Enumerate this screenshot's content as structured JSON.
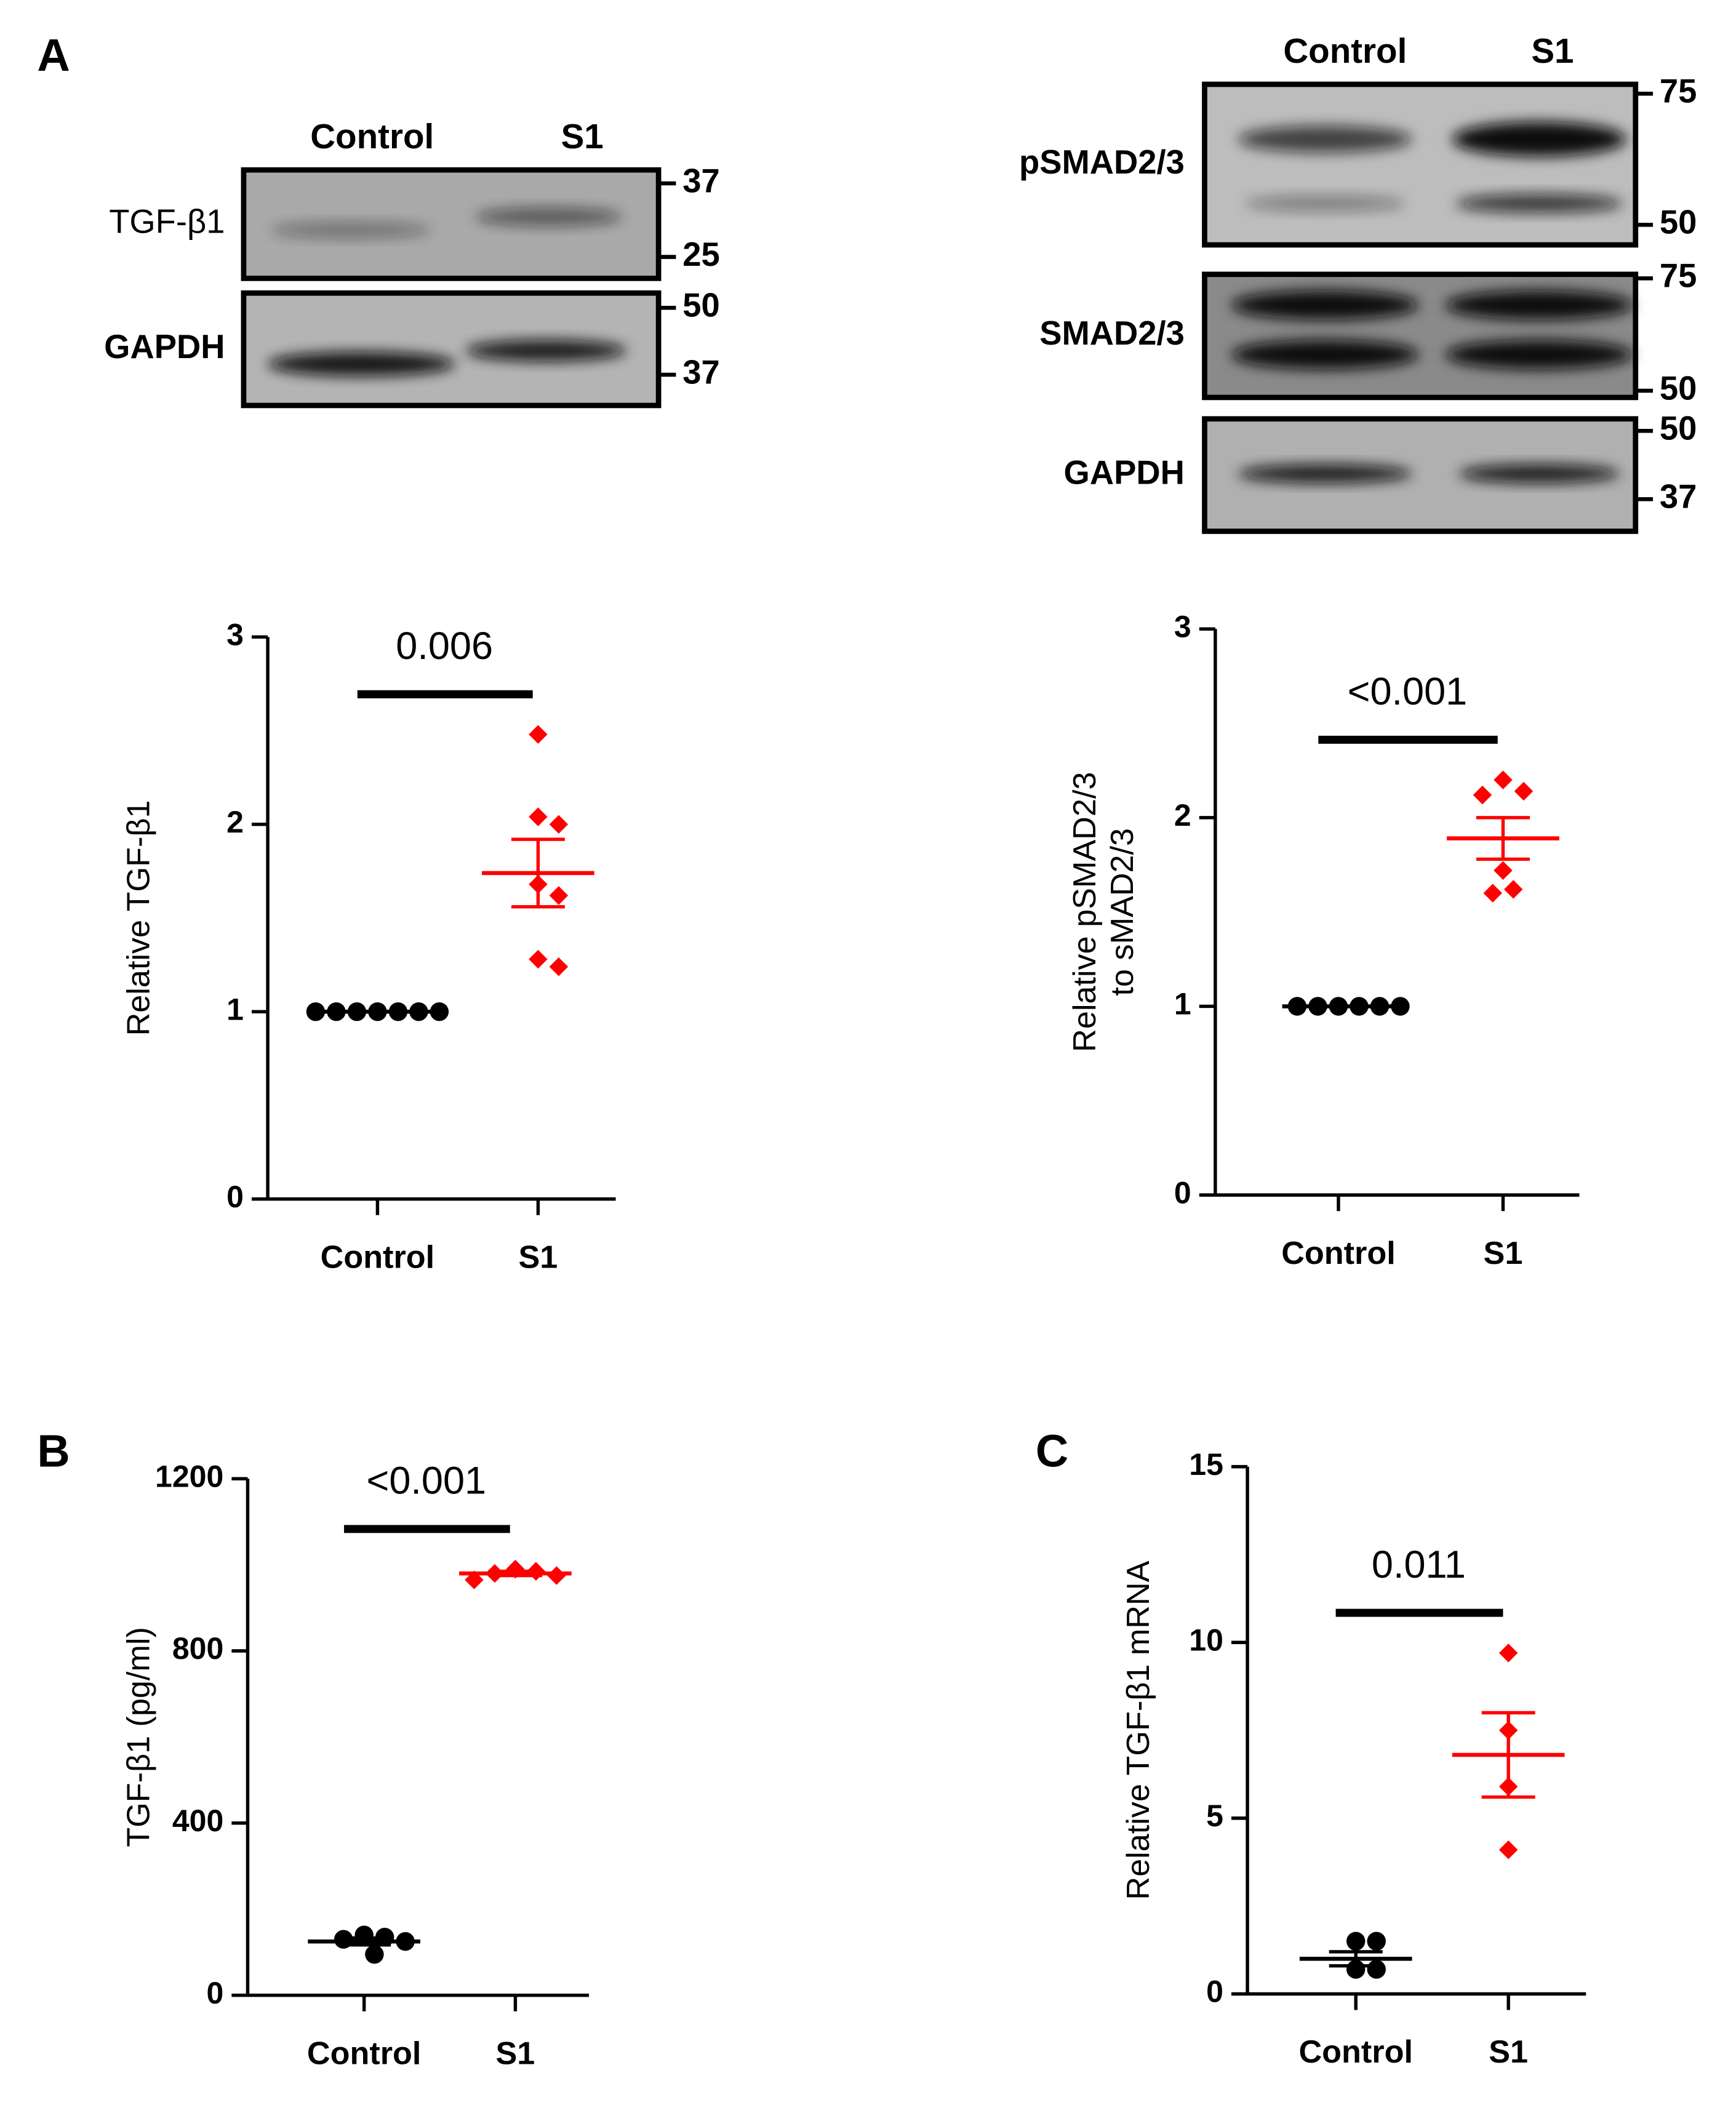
{
  "panel_labels": [
    "A",
    "B",
    "C"
  ],
  "blots": [
    {
      "lanes": [
        "Control",
        "S1"
      ],
      "rows": [
        {
          "label": "TGF-β1",
          "markers": [
            37,
            25
          ]
        },
        {
          "label": "GAPDH",
          "markers": [
            50,
            37
          ]
        }
      ]
    },
    {
      "lanes": [
        "Control",
        "S1"
      ],
      "rows": [
        {
          "label": "pSMAD2/3",
          "markers": [
            75,
            50
          ]
        },
        {
          "label": "SMAD2/3",
          "markers": [
            75,
            50
          ]
        },
        {
          "label": "GAPDH",
          "markers": [
            50,
            37
          ]
        }
      ]
    }
  ],
  "chart_data": [
    {
      "type": "dot",
      "ylabel": "Relative TGF-β1",
      "categories": [
        "Control",
        "S1"
      ],
      "ylim": [
        0,
        3
      ],
      "yticks": [
        0,
        1,
        2,
        3
      ],
      "annotation": "0.006",
      "groups": [
        {
          "color": "#000000",
          "marker": "circle",
          "values": [
            1,
            1,
            1,
            1,
            1,
            1,
            1
          ],
          "mean": 1,
          "sem": 0
        },
        {
          "color": "#ff0000",
          "marker": "diamond",
          "values": [
            2.48,
            2.04,
            2.0,
            1.68,
            1.62,
            1.28,
            1.24
          ],
          "mean": 1.74,
          "sem": 0.18
        }
      ]
    },
    {
      "type": "dot",
      "ylabel": [
        "Relative pSMAD2/3",
        "to sMAD2/3"
      ],
      "categories": [
        "Control",
        "S1"
      ],
      "ylim": [
        0,
        3
      ],
      "yticks": [
        0,
        1,
        2,
        3
      ],
      "annotation": "<0.001",
      "groups": [
        {
          "color": "#000000",
          "marker": "circle",
          "values": [
            1,
            1,
            1,
            1,
            1,
            1
          ],
          "mean": 1,
          "sem": 0
        },
        {
          "color": "#ff0000",
          "marker": "diamond",
          "values": [
            2.2,
            2.14,
            2.12,
            1.72,
            1.62,
            1.6
          ],
          "mean": 1.89,
          "sem": 0.11
        }
      ]
    },
    {
      "type": "dot",
      "ylabel": "TGF-β1  (pg/ml)",
      "categories": [
        "Control",
        "S1"
      ],
      "ylim": [
        0,
        1200
      ],
      "yticks": [
        0,
        400,
        800,
        1200
      ],
      "annotation": "<0.001",
      "groups": [
        {
          "color": "#000000",
          "marker": "circle",
          "values": [
            140,
            135,
            130,
            125,
            95
          ],
          "mean": 125,
          "sem": 8
        },
        {
          "color": "#ff0000",
          "marker": "diamond",
          "values": [
            990,
            985,
            980,
            975,
            965
          ],
          "mean": 980,
          "sem": 5
        }
      ]
    },
    {
      "type": "dot",
      "ylabel": "Relative TGF-β1 mRNA",
      "categories": [
        "Control",
        "S1"
      ],
      "ylim": [
        0,
        15
      ],
      "yticks": [
        0,
        5,
        10,
        15
      ],
      "annotation": "0.011",
      "groups": [
        {
          "color": "#000000",
          "marker": "circle",
          "values": [
            1.5,
            1.5,
            0.7,
            0.7
          ],
          "mean": 1.0,
          "sem": 0.2
        },
        {
          "color": "#ff0000",
          "marker": "diamond",
          "values": [
            9.7,
            7.5,
            5.9,
            4.1
          ],
          "mean": 6.8,
          "sem": 1.2
        }
      ]
    }
  ]
}
